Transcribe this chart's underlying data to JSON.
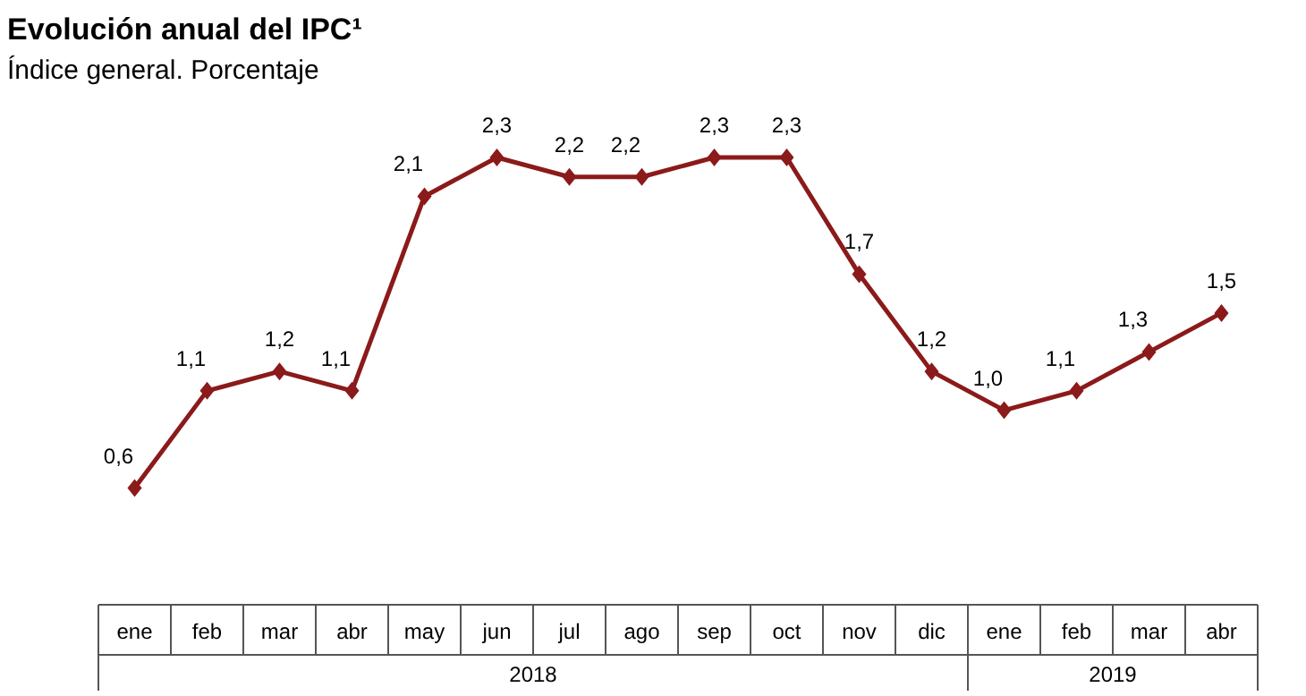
{
  "chart_data": {
    "type": "line",
    "title": "Evolución anual del IPC¹",
    "subtitle": "Índice general. Porcentaje",
    "categories": [
      "ene",
      "feb",
      "mar",
      "abr",
      "may",
      "jun",
      "jul",
      "ago",
      "sep",
      "oct",
      "nov",
      "dic",
      "ene",
      "feb",
      "mar",
      "abr"
    ],
    "series": [
      {
        "color": "#8b1a1a",
        "values": [
          0.6,
          1.1,
          1.2,
          1.1,
          2.1,
          2.3,
          2.2,
          2.2,
          2.3,
          2.3,
          1.7,
          1.2,
          1.0,
          1.1,
          1.3,
          1.5
        ],
        "value_labels": [
          "0,6",
          "1,1",
          "1,2",
          "1,1",
          "2,1",
          "2,3",
          "2,2",
          "2,2",
          "2,3",
          "2,3",
          "1,7",
          "1,2",
          "1,0",
          "1,1",
          "1,3",
          "1,5"
        ]
      }
    ],
    "annotations": [
      "2018",
      "2019"
    ],
    "marker": "diamond",
    "line_style": "solid"
  }
}
